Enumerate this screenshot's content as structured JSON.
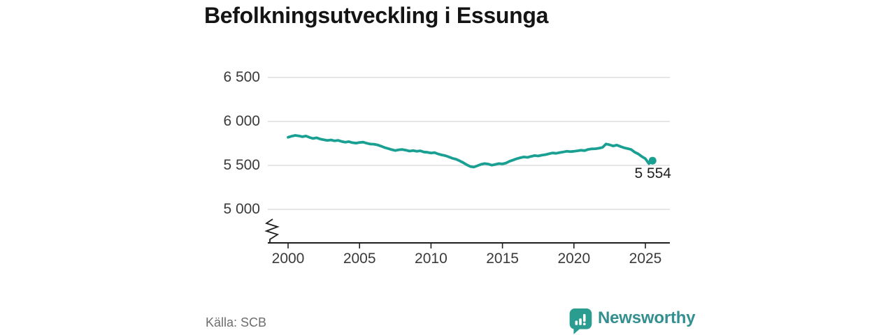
{
  "title": "Befolkningsutveckling i Essunga",
  "source": "Källa: SCB",
  "brand": {
    "name": "Newsworthy",
    "icon": "speech-bubble-bar-chart"
  },
  "colors": {
    "line": "#1aa092",
    "grid": "#d8d8d8",
    "axis": "#1f1f1f",
    "tick_text": "#3a3a3a",
    "title_text": "#141414",
    "source_text": "#6d6d6d",
    "brand_teal": "#338f90",
    "icon_teal": "#2b9c90",
    "background": "#ffffff"
  },
  "chart_data": {
    "type": "line",
    "title": "Befolkningsutveckling i Essunga",
    "xlabel": "",
    "ylabel": "",
    "grid": "horizontal",
    "axis_break": true,
    "legend": "none",
    "x_ticks": [
      2000,
      2005,
      2010,
      2015,
      2020,
      2025
    ],
    "x_tick_labels": [
      "2000",
      "2005",
      "2010",
      "2015",
      "2020",
      "2025"
    ],
    "y_ticks": [
      5000,
      5500,
      6000,
      6500
    ],
    "y_tick_labels": [
      "5 000",
      "5 500",
      "6 000",
      "6 500"
    ],
    "xlim": [
      1998.6,
      2026.7
    ],
    "ylim": [
      4800,
      6650
    ],
    "series": [
      {
        "name": "Befolkning",
        "points": [
          [
            2000,
            5820
          ],
          [
            2000.25,
            5832
          ],
          [
            2000.5,
            5841
          ],
          [
            2000.75,
            5836
          ],
          [
            2001,
            5826
          ],
          [
            2001.25,
            5834
          ],
          [
            2001.5,
            5818
          ],
          [
            2001.75,
            5806
          ],
          [
            2002,
            5814
          ],
          [
            2002.25,
            5800
          ],
          [
            2002.5,
            5792
          ],
          [
            2002.75,
            5784
          ],
          [
            2003,
            5790
          ],
          [
            2003.25,
            5779
          ],
          [
            2003.5,
            5785
          ],
          [
            2003.75,
            5772
          ],
          [
            2004,
            5764
          ],
          [
            2004.25,
            5771
          ],
          [
            2004.5,
            5759
          ],
          [
            2004.75,
            5753
          ],
          [
            2005,
            5761
          ],
          [
            2005.25,
            5764
          ],
          [
            2005.5,
            5752
          ],
          [
            2005.75,
            5743
          ],
          [
            2006,
            5741
          ],
          [
            2006.25,
            5733
          ],
          [
            2006.5,
            5719
          ],
          [
            2006.75,
            5703
          ],
          [
            2007,
            5692
          ],
          [
            2007.25,
            5679
          ],
          [
            2007.5,
            5669
          ],
          [
            2007.75,
            5678
          ],
          [
            2008,
            5681
          ],
          [
            2008.25,
            5673
          ],
          [
            2008.5,
            5663
          ],
          [
            2008.75,
            5669
          ],
          [
            2009,
            5661
          ],
          [
            2009.25,
            5666
          ],
          [
            2009.5,
            5652
          ],
          [
            2009.75,
            5649
          ],
          [
            2010,
            5641
          ],
          [
            2010.25,
            5646
          ],
          [
            2010.5,
            5630
          ],
          [
            2010.75,
            5619
          ],
          [
            2011,
            5611
          ],
          [
            2011.25,
            5596
          ],
          [
            2011.5,
            5581
          ],
          [
            2011.75,
            5571
          ],
          [
            2012,
            5552
          ],
          [
            2012.25,
            5532
          ],
          [
            2012.5,
            5507
          ],
          [
            2012.75,
            5487
          ],
          [
            2013,
            5481
          ],
          [
            2013.25,
            5496
          ],
          [
            2013.5,
            5512
          ],
          [
            2013.75,
            5521
          ],
          [
            2014,
            5516
          ],
          [
            2014.25,
            5502
          ],
          [
            2014.5,
            5511
          ],
          [
            2014.75,
            5521
          ],
          [
            2015,
            5517
          ],
          [
            2015.25,
            5527
          ],
          [
            2015.5,
            5547
          ],
          [
            2015.75,
            5561
          ],
          [
            2016,
            5576
          ],
          [
            2016.25,
            5587
          ],
          [
            2016.5,
            5596
          ],
          [
            2016.75,
            5591
          ],
          [
            2017,
            5602
          ],
          [
            2017.25,
            5612
          ],
          [
            2017.5,
            5607
          ],
          [
            2017.75,
            5616
          ],
          [
            2018,
            5622
          ],
          [
            2018.25,
            5632
          ],
          [
            2018.5,
            5641
          ],
          [
            2018.75,
            5637
          ],
          [
            2019,
            5646
          ],
          [
            2019.25,
            5652
          ],
          [
            2019.5,
            5661
          ],
          [
            2019.75,
            5656
          ],
          [
            2020,
            5660
          ],
          [
            2020.25,
            5666
          ],
          [
            2020.5,
            5672
          ],
          [
            2020.75,
            5668
          ],
          [
            2021,
            5682
          ],
          [
            2021.25,
            5688
          ],
          [
            2021.5,
            5690
          ],
          [
            2021.75,
            5695
          ],
          [
            2022,
            5705
          ],
          [
            2022.25,
            5744
          ],
          [
            2022.5,
            5734
          ],
          [
            2022.75,
            5721
          ],
          [
            2023,
            5731
          ],
          [
            2023.25,
            5716
          ],
          [
            2023.5,
            5701
          ],
          [
            2023.75,
            5691
          ],
          [
            2024,
            5681
          ],
          [
            2024.25,
            5651
          ],
          [
            2024.5,
            5631
          ],
          [
            2024.75,
            5601
          ],
          [
            2025,
            5576
          ],
          [
            2025.25,
            5520
          ],
          [
            2025.4,
            5558
          ],
          [
            2025.5,
            5554
          ]
        ]
      }
    ],
    "last_point": {
      "x": 2025.5,
      "y": 5554,
      "label": "5 554"
    }
  }
}
